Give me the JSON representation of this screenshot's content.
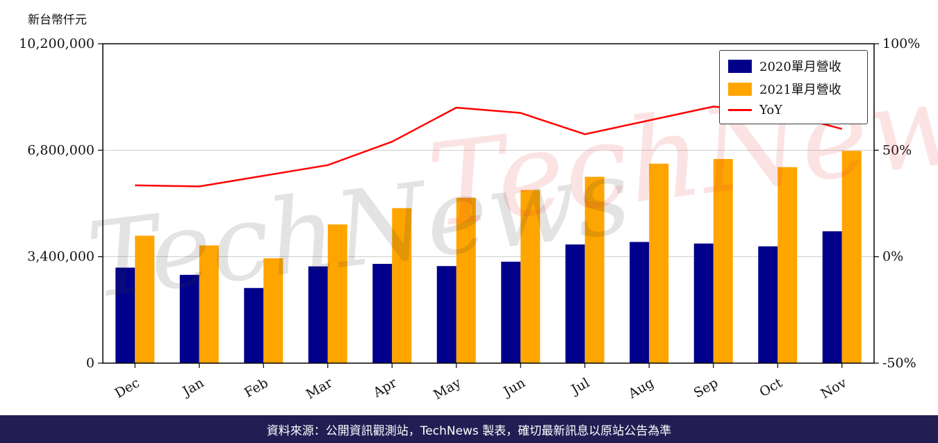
{
  "unit_label": "新台幣仟元",
  "watermark": {
    "text": "TechNews"
  },
  "legend": [
    {
      "label": "2020單月營收",
      "color": "#00008b",
      "type": "bar"
    },
    {
      "label": "2021單月營收",
      "color": "#ffa500",
      "type": "bar"
    },
    {
      "label": "YoY",
      "color": "#ff0000",
      "type": "line"
    }
  ],
  "footer": {
    "text": "資料來源：公開資訊觀測站，TechNews 製表，確切最新訊息以原站公告為準",
    "bg_color": "#221e54"
  },
  "chart_data": {
    "type": "bar+line",
    "title": "",
    "categories": [
      "Dec",
      "Jan",
      "Feb",
      "Mar",
      "Apr",
      "May",
      "Jun",
      "Jul",
      "Aug",
      "Sep",
      "Oct",
      "Nov"
    ],
    "series": [
      {
        "name": "2020單月營收",
        "type": "bar",
        "axis": "left",
        "color": "#00008b",
        "values": [
          3050000,
          2820000,
          2400000,
          3090000,
          3170000,
          3100000,
          3240000,
          3790000,
          3870000,
          3820000,
          3730000,
          4210000
        ]
      },
      {
        "name": "2021單月營收",
        "type": "bar",
        "axis": "left",
        "color": "#ffa500",
        "values": [
          4070000,
          3760000,
          3350000,
          4430000,
          4950000,
          5280000,
          5530000,
          5950000,
          6370000,
          6520000,
          6260000,
          6780000
        ]
      },
      {
        "name": "YoY",
        "type": "line",
        "axis": "right",
        "color": "#ff0000",
        "values": [
          33.5,
          33,
          38,
          43,
          54,
          70,
          67.5,
          57.5,
          64,
          70.5,
          68,
          60
        ]
      }
    ],
    "left_axis": {
      "range": [
        0,
        10200000
      ],
      "ticks": [
        0,
        3400000,
        6800000,
        10200000
      ],
      "tick_labels": [
        "0",
        "3,400,000",
        "6,800,000",
        "10,200,000"
      ]
    },
    "right_axis": {
      "range": [
        -50,
        100
      ],
      "ticks": [
        -50,
        0,
        50,
        100
      ],
      "tick_labels": [
        "-50%",
        "0%",
        "50%",
        "100%"
      ]
    },
    "grid": "horizontal",
    "legend_position": "upper-right"
  }
}
